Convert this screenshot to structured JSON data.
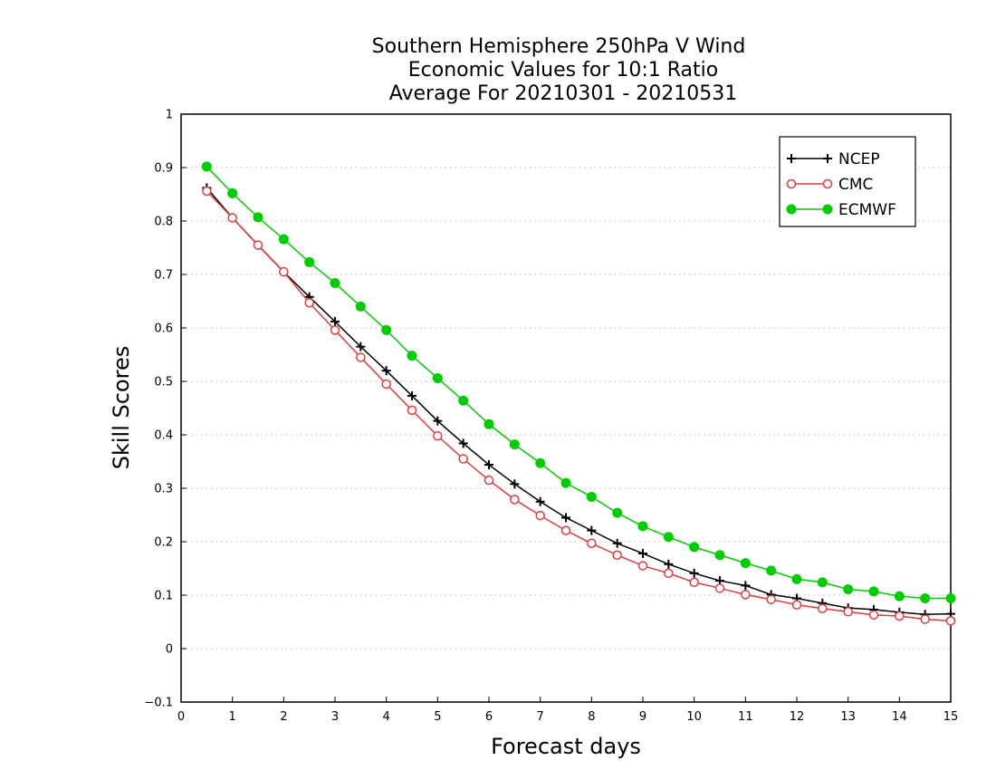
{
  "chart_data": {
    "type": "line",
    "title": [
      "Southern Hemisphere 250hPa V Wind",
      "Economic Values for 10:1 Ratio",
      "Average For 20210301 - 20210531"
    ],
    "xlabel": "Forecast days",
    "ylabel": "Skill Scores",
    "xlim": [
      0,
      15
    ],
    "ylim": [
      -0.1,
      1
    ],
    "xticks": [
      0,
      1,
      2,
      3,
      4,
      5,
      6,
      7,
      8,
      9,
      10,
      11,
      12,
      13,
      14,
      15
    ],
    "xtick_labels": [
      "0",
      "1",
      "2",
      "3",
      "4",
      "5",
      "6",
      "7",
      "8",
      "9",
      "10",
      "11",
      "12",
      "13",
      "14",
      "15"
    ],
    "yticks": [
      -0.1,
      0,
      0.1,
      0.2,
      0.3,
      0.4,
      0.5,
      0.6,
      0.7,
      0.8,
      0.9,
      1
    ],
    "ytick_labels": [
      "−0.1",
      "0",
      "0.1",
      "0.2",
      "0.3",
      "0.4",
      "0.5",
      "0.6",
      "0.7",
      "0.8",
      "0.9",
      "1"
    ],
    "grid": "horizontal dotted",
    "legend_position": "top-right",
    "x": [
      0.5,
      1,
      1.5,
      2,
      2.5,
      3,
      3.5,
      4,
      4.5,
      5,
      5.5,
      6,
      6.5,
      7,
      7.5,
      8,
      8.5,
      9,
      9.5,
      10,
      10.5,
      11,
      11.5,
      12,
      12.5,
      13,
      13.5,
      14,
      14.5,
      15
    ],
    "series": [
      {
        "name": "NCEP",
        "color": "#000000",
        "marker": "plus",
        "values": [
          0.862,
          0.806,
          0.755,
          0.705,
          0.658,
          0.612,
          0.565,
          0.52,
          0.473,
          0.426,
          0.384,
          0.344,
          0.308,
          0.275,
          0.245,
          0.221,
          0.197,
          0.178,
          0.158,
          0.141,
          0.127,
          0.118,
          0.101,
          0.094,
          0.085,
          0.076,
          0.073,
          0.068,
          0.064,
          0.065
        ]
      },
      {
        "name": "CMC",
        "color": "#e03c3c",
        "marker": "open-circle",
        "values": [
          0.856,
          0.806,
          0.755,
          0.705,
          0.647,
          0.596,
          0.545,
          0.495,
          0.446,
          0.398,
          0.355,
          0.315,
          0.279,
          0.249,
          0.221,
          0.197,
          0.175,
          0.155,
          0.141,
          0.124,
          0.113,
          0.101,
          0.092,
          0.082,
          0.075,
          0.069,
          0.063,
          0.061,
          0.055,
          0.052
        ]
      },
      {
        "name": "ECMWF",
        "color": "#00cc00",
        "marker": "filled-circle",
        "values": [
          0.902,
          0.852,
          0.807,
          0.766,
          0.723,
          0.684,
          0.64,
          0.596,
          0.548,
          0.506,
          0.464,
          0.42,
          0.382,
          0.347,
          0.31,
          0.284,
          0.254,
          0.229,
          0.209,
          0.19,
          0.175,
          0.16,
          0.146,
          0.13,
          0.124,
          0.111,
          0.107,
          0.098,
          0.094,
          0.094
        ]
      }
    ]
  }
}
